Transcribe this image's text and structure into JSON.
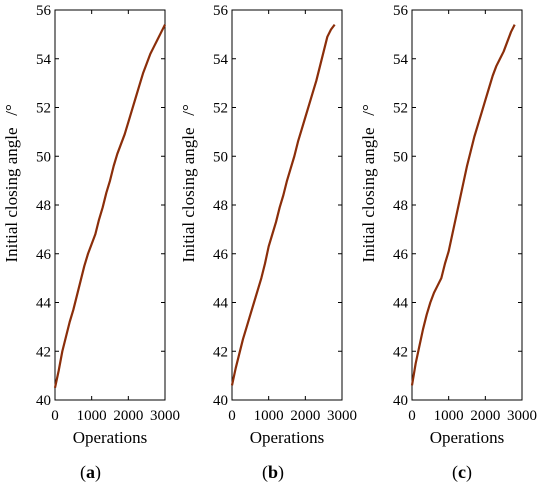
{
  "colors": {
    "series": "#8B2E0A",
    "axis": "#000000",
    "background": "#ffffff"
  },
  "chart_data": [
    {
      "type": "line",
      "panel_label": "a",
      "xlabel": "Operations",
      "ylabel": "Initial closing angle",
      "ylabel_unit": "/°",
      "xlim": [
        0,
        3000
      ],
      "ylim": [
        40,
        56
      ],
      "xticks": [
        0,
        1000,
        2000,
        3000
      ],
      "yticks": [
        40,
        42,
        44,
        46,
        48,
        50,
        52,
        54,
        56
      ],
      "grid": false,
      "series": [
        {
          "x": [
            0,
            100,
            200,
            300,
            400,
            500,
            600,
            700,
            800,
            900,
            1000,
            1100,
            1200,
            1300,
            1400,
            1500,
            1600,
            1700,
            1800,
            1900,
            2000,
            2100,
            2200,
            2300,
            2400,
            2500,
            2600,
            2700,
            2800,
            2900,
            3000
          ],
          "y": [
            40.5,
            41.2,
            42.0,
            42.6,
            43.2,
            43.7,
            44.3,
            44.9,
            45.5,
            46.0,
            46.4,
            46.8,
            47.4,
            47.9,
            48.5,
            49.0,
            49.6,
            50.1,
            50.5,
            50.9,
            51.4,
            51.9,
            52.4,
            52.9,
            53.4,
            53.8,
            54.2,
            54.5,
            54.8,
            55.1,
            55.4
          ]
        }
      ]
    },
    {
      "type": "line",
      "panel_label": "b",
      "xlabel": "Operations",
      "ylabel": "Initial closing angle",
      "ylabel_unit": "/°",
      "xlim": [
        0,
        3000
      ],
      "ylim": [
        40,
        56
      ],
      "xticks": [
        0,
        1000,
        2000,
        3000
      ],
      "yticks": [
        40,
        42,
        44,
        46,
        48,
        50,
        52,
        54,
        56
      ],
      "grid": false,
      "series": [
        {
          "x": [
            0,
            100,
            200,
            300,
            400,
            500,
            600,
            700,
            800,
            900,
            1000,
            1100,
            1200,
            1300,
            1400,
            1500,
            1600,
            1700,
            1800,
            1900,
            2000,
            2100,
            2200,
            2300,
            2400,
            2500,
            2600,
            2700,
            2800
          ],
          "y": [
            40.6,
            41.3,
            41.9,
            42.5,
            43.0,
            43.5,
            44.0,
            44.5,
            45.0,
            45.6,
            46.3,
            46.8,
            47.3,
            47.9,
            48.4,
            49.0,
            49.5,
            50.0,
            50.6,
            51.1,
            51.6,
            52.1,
            52.6,
            53.1,
            53.7,
            54.3,
            54.9,
            55.2,
            55.4
          ]
        }
      ]
    },
    {
      "type": "line",
      "panel_label": "c",
      "xlabel": "Operations",
      "ylabel": "Initial closing angle",
      "ylabel_unit": "/°",
      "xlim": [
        0,
        3000
      ],
      "ylim": [
        40,
        56
      ],
      "xticks": [
        0,
        1000,
        2000,
        3000
      ],
      "yticks": [
        40,
        42,
        44,
        46,
        48,
        50,
        52,
        54,
        56
      ],
      "grid": false,
      "series": [
        {
          "x": [
            0,
            100,
            200,
            300,
            400,
            500,
            600,
            700,
            800,
            900,
            1000,
            1100,
            1200,
            1300,
            1400,
            1500,
            1600,
            1700,
            1800,
            1900,
            2000,
            2100,
            2200,
            2300,
            2400,
            2500,
            2600,
            2700,
            2800
          ],
          "y": [
            40.6,
            41.5,
            42.2,
            42.9,
            43.5,
            44.0,
            44.4,
            44.7,
            45.0,
            45.6,
            46.1,
            46.8,
            47.5,
            48.2,
            48.9,
            49.6,
            50.2,
            50.8,
            51.3,
            51.8,
            52.3,
            52.8,
            53.3,
            53.7,
            54.0,
            54.3,
            54.7,
            55.1,
            55.4
          ]
        }
      ]
    }
  ]
}
